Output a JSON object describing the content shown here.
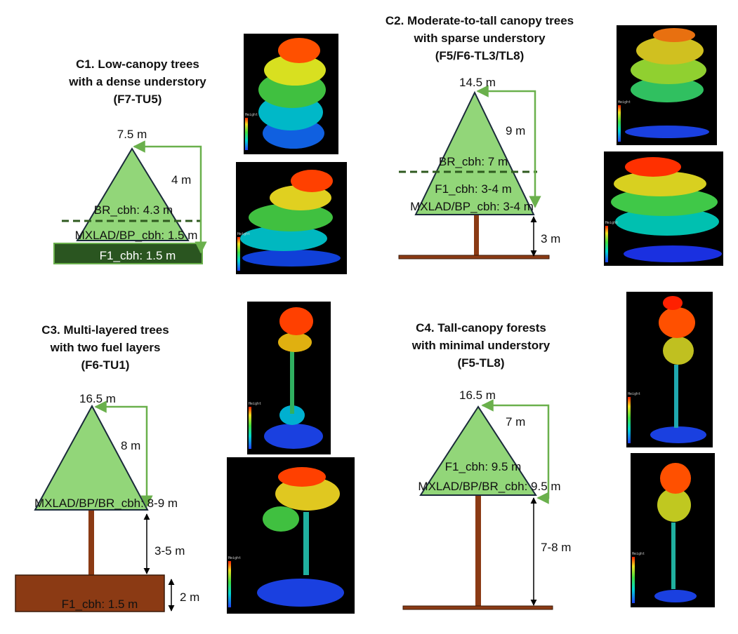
{
  "panels": {
    "c1": {
      "title": [
        "C1. Low-canopy trees",
        "with a dense understory",
        "(F7-TU5)"
      ],
      "top_height": "7.5 m",
      "gap": "4 m",
      "br_cbh": "BR_cbh: 4.3 m",
      "mxlad_bp_cbh": "MXLAD/BP_cbh: 1.5 m",
      "f1_cbh": "F1_cbh: 1.5 m"
    },
    "c2": {
      "title": [
        "C2. Moderate-to-tall  canopy trees",
        "with sparse understory",
        "(F5/F6-TL3/TL8)"
      ],
      "top_height": "14.5 m",
      "gap": "9 m",
      "br_cbh": "BR_cbh: 7 m",
      "f1_cbh": "F1_cbh: 3-4 m",
      "mxlad_bp_cbh": "MXLAD/BP_cbh: 3-4 m",
      "trunk_height": "3 m"
    },
    "c3": {
      "title": [
        "C3. Multi-layered trees",
        "with two fuel layers",
        "(F6-TU1)"
      ],
      "top_height": "16.5 m",
      "gap": "8 m",
      "mxlad_bp_br_cbh": "MXLAD/BP/BR_cbh: 8-9 m",
      "trunk_height": "3-5 m",
      "understory_height": "2 m",
      "f1_cbh": "F1_cbh: 1.5 m"
    },
    "c4": {
      "title": [
        "C4. Tall-canopy forests",
        "with minimal understory",
        "(F5-TL8)"
      ],
      "top_height": "16.5 m",
      "gap": "7 m",
      "f1_cbh": "F1_cbh: 9.5 m",
      "mxlad_bp_br_cbh": "MXLAD/BP/BR_cbh: 9.5 m",
      "trunk_height": "7-8 m"
    }
  },
  "colorbar": {
    "label": "Height"
  },
  "colors": {
    "crown_fill": "#92d679",
    "outline": "#1a2a3a",
    "green_line": "#6ab04c",
    "dark_dash": "#2f5a1f",
    "trunk": "#8b3a14",
    "understory_dark": "#2a5520",
    "understory_brown": "#8b3a14",
    "arrow": "#000000"
  }
}
